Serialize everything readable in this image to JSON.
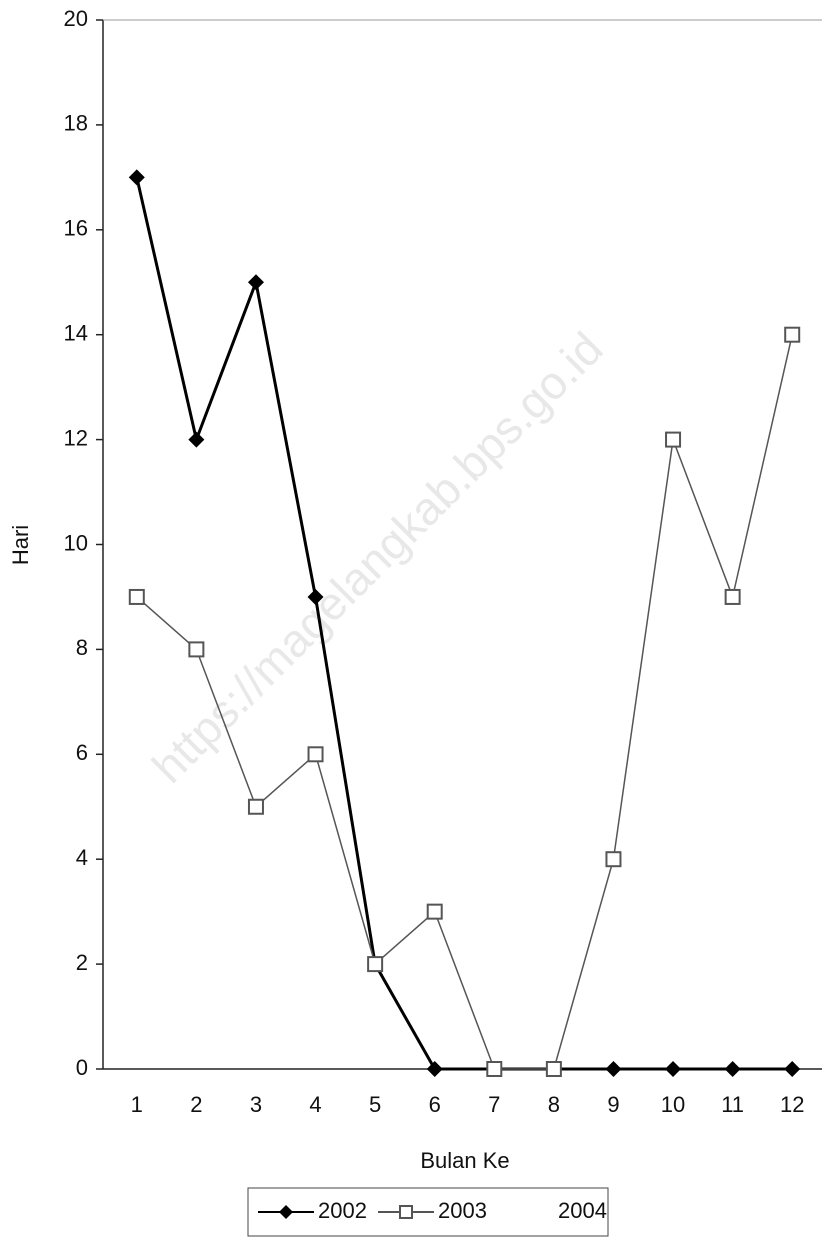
{
  "chart_data": {
    "type": "line",
    "x_label": "Bulan Ke",
    "y_label": "Hari",
    "watermark": "https://magelangkab.bps.go.id",
    "categories": [
      "1",
      "2",
      "3",
      "4",
      "5",
      "6",
      "7",
      "8",
      "9",
      "10",
      "11",
      "12"
    ],
    "series": [
      {
        "name": "2002",
        "color": "#000000",
        "marker": "diamond",
        "values": [
          17,
          12,
          15,
          9,
          2,
          0,
          0,
          0,
          0,
          0,
          0,
          0
        ]
      },
      {
        "name": "2003",
        "color": "#555555",
        "marker": "square",
        "values": [
          9,
          8,
          5,
          6,
          2,
          3,
          0,
          0,
          4,
          12,
          9,
          14
        ]
      },
      {
        "name": "2004",
        "color": "#dddddd",
        "marker": "none",
        "values": [
          null,
          null,
          null,
          null,
          null,
          null,
          null,
          null,
          null,
          null,
          null,
          null
        ]
      }
    ],
    "ylim": [
      0,
      20
    ],
    "yticks": [
      0,
      2,
      4,
      6,
      8,
      10,
      12,
      14,
      16,
      18,
      20
    ],
    "grid": false
  }
}
